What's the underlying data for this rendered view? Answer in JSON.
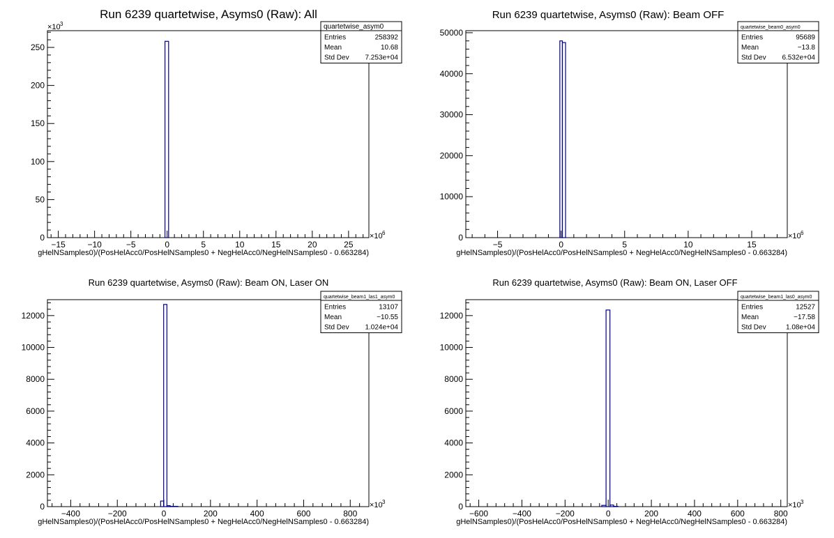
{
  "chart_data": [
    {
      "type": "bar",
      "title": "Run 6239 quartetwise, Asyms0 (Raw): All",
      "xlabel": "gHelNSamples0)/(PosHelAcc0/PosHelNSamples0 + NegHelAcc0/NegHelNSamples0 - 0.663284)",
      "x_multiplier": "×10",
      "x_multiplier_exp": "6",
      "y_multiplier": "×10",
      "y_multiplier_exp": "3",
      "xlim": [
        -16.5,
        27.8
      ],
      "ylim": [
        0,
        272
      ],
      "x_ticks": [
        -15,
        -10,
        -5,
        0,
        5,
        10,
        15,
        20,
        25
      ],
      "x_tick_labels": [
        "−15",
        "−10",
        "−5",
        "0",
        "5",
        "10",
        "15",
        "20",
        "25"
      ],
      "y_ticks": [
        0,
        50,
        100,
        150,
        200,
        250
      ],
      "y_tick_labels": [
        "0",
        "50",
        "100",
        "150",
        "200",
        "250"
      ],
      "bins": [
        {
          "x0": -0.3,
          "x1": 0.2,
          "value": 258
        }
      ],
      "stats": {
        "name": "quartetwise_asym0",
        "rows": [
          {
            "label": "Entries",
            "value": "258392"
          },
          {
            "label": "Mean",
            "value": "10.68"
          },
          {
            "label": "Std Dev",
            "value": "7.253e+04"
          }
        ]
      }
    },
    {
      "type": "bar",
      "title": "Run 6239 quartetwise, Asyms0 (Raw): Beam OFF",
      "xlabel": "gHelNSamples0)/(PosHelAcc0/PosHelNSamples0 + NegHelAcc0/NegHelNSamples0 - 0.663284)",
      "x_multiplier": "×10",
      "x_multiplier_exp": "6",
      "y_multiplier": "",
      "y_multiplier_exp": "",
      "xlim": [
        -7.5,
        17.8
      ],
      "ylim": [
        0,
        50500
      ],
      "x_ticks": [
        -5,
        0,
        5,
        10,
        15
      ],
      "x_tick_labels": [
        "−5",
        "0",
        "5",
        "10",
        "15"
      ],
      "y_ticks": [
        0,
        10000,
        20000,
        30000,
        40000,
        50000
      ],
      "y_tick_labels": [
        "0",
        "10000",
        "20000",
        "30000",
        "40000",
        "50000"
      ],
      "bins": [
        {
          "x0": -0.1,
          "x1": 0.1,
          "value": 48000
        },
        {
          "x0": 0.1,
          "x1": 0.35,
          "value": 47600
        }
      ],
      "stats": {
        "name": "quartetwise_beam0_asym0",
        "rows": [
          {
            "label": "Entries",
            "value": "95689"
          },
          {
            "label": "Mean",
            "value": "−13.8"
          },
          {
            "label": "Std Dev",
            "value": "6.532e+04"
          }
        ]
      }
    },
    {
      "type": "bar",
      "title": "Run 6239 quartetwise, Asyms0 (Raw): Beam ON, Laser ON",
      "xlabel": "gHelNSamples0)/(PosHelAcc0/PosHelNSamples0 + NegHelAcc0/NegHelNSamples0 - 0.663284)",
      "x_multiplier": "×10",
      "x_multiplier_exp": "3",
      "y_multiplier": "",
      "y_multiplier_exp": "",
      "xlim": [
        -500,
        880
      ],
      "ylim": [
        0,
        13000
      ],
      "x_ticks": [
        -400,
        -200,
        0,
        200,
        400,
        600,
        800
      ],
      "x_tick_labels": [
        "−400",
        "−200",
        "0",
        "200",
        "400",
        "600",
        "800"
      ],
      "y_ticks": [
        0,
        2000,
        4000,
        6000,
        8000,
        10000,
        12000
      ],
      "y_tick_labels": [
        "0",
        "2000",
        "4000",
        "6000",
        "8000",
        "10000",
        "12000"
      ],
      "bins": [
        {
          "x0": -14,
          "x1": -1,
          "value": 350
        },
        {
          "x0": -1,
          "x1": 13,
          "value": 12700
        },
        {
          "x0": 13,
          "x1": 27,
          "value": 60
        },
        {
          "x0": 27,
          "x1": 60,
          "value": 20
        }
      ],
      "stats": {
        "name": "quartetwise_beam1_las1_asym0",
        "rows": [
          {
            "label": "Entries",
            "value": "13107"
          },
          {
            "label": "Mean",
            "value": "−10.55"
          },
          {
            "label": "Std Dev",
            "value": "1.024e+04"
          }
        ]
      }
    },
    {
      "type": "bar",
      "title": "Run 6239 quartetwise, Asyms0 (Raw): Beam ON, Laser OFF",
      "xlabel": "gHelNSamples0)/(PosHelAcc0/PosHelNSamples0 + NegHelAcc0/NegHelNSamples0 - 0.663284)",
      "x_multiplier": "×10",
      "x_multiplier_exp": "3",
      "y_multiplier": "",
      "y_multiplier_exp": "",
      "xlim": [
        -660,
        830
      ],
      "ylim": [
        0,
        13000
      ],
      "x_ticks": [
        -600,
        -400,
        -200,
        0,
        200,
        400,
        600,
        800
      ],
      "x_tick_labels": [
        "−600",
        "−400",
        "−200",
        "0",
        "200",
        "400",
        "600",
        "800"
      ],
      "y_ticks": [
        0,
        2000,
        4000,
        6000,
        8000,
        10000,
        12000
      ],
      "y_tick_labels": [
        "0",
        "2000",
        "4000",
        "6000",
        "8000",
        "10000",
        "12000"
      ],
      "bins": [
        {
          "x0": -30,
          "x1": -10,
          "value": 80
        },
        {
          "x0": -10,
          "x1": 8,
          "value": 12350
        },
        {
          "x0": 8,
          "x1": 25,
          "value": 100
        },
        {
          "x0": 25,
          "x1": 45,
          "value": 20
        }
      ],
      "stats": {
        "name": "quartetwise_beam1_las0_asym0",
        "rows": [
          {
            "label": "Entries",
            "value": "12527"
          },
          {
            "label": "Mean",
            "value": "−17.58"
          },
          {
            "label": "Std Dev",
            "value": "1.08e+04"
          }
        ]
      }
    }
  ]
}
